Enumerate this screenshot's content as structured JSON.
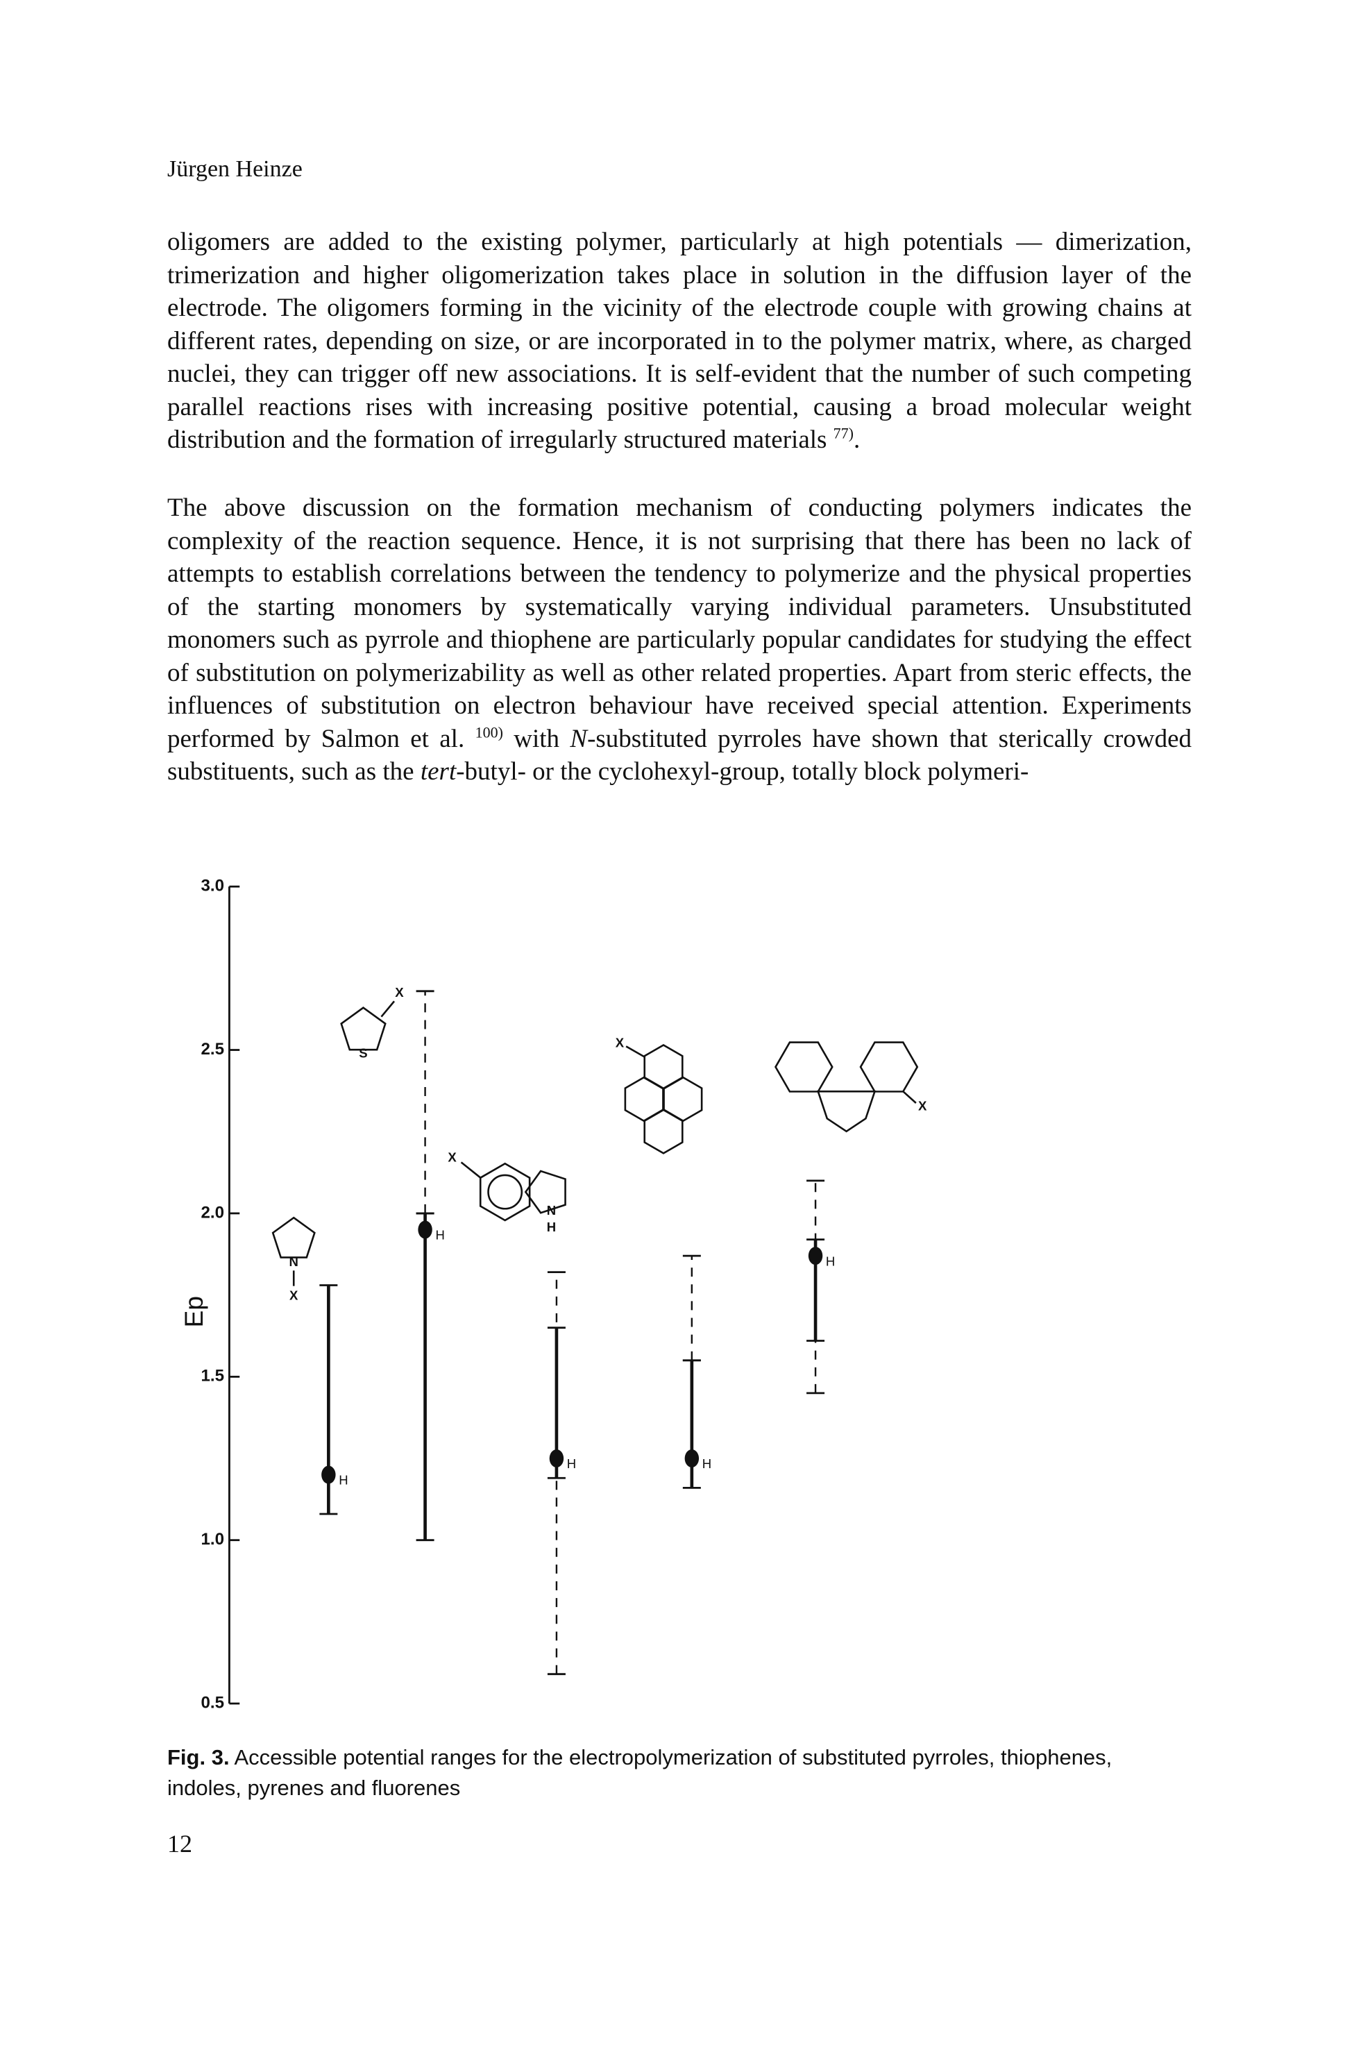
{
  "header": {
    "author": "Jürgen Heinze"
  },
  "paragraphs": [
    [
      {
        "text": "oligomers are added to the existing polymer, particularly at high potentials — dimerization, trimerization and higher oligomerization takes place in solution in the diffusion layer of the electrode. The oligomers forming in the vicinity of the electrode couple with growing chains at different rates, depending on size, or are incorporated in to the polymer matrix, where, as charged nuclei, they can trigger off new associations. It is self-evident that the number of such competing parallel reactions rises with increasing positive potential, causing a broad molecular weight distribution and the formation of irregularly structured materials "
      },
      {
        "text": "77)",
        "style": "sup"
      },
      {
        "text": "."
      }
    ],
    [
      {
        "text": "The above discussion on the formation mechanism of conducting polymers indicates the complexity of the reaction sequence. Hence, it is not surprising that there has been no lack of attempts to establish correlations between the tendency to polymerize and the physical properties of the starting monomers by systematically varying individual parameters. Unsubstituted monomers such as pyrrole and thiophene are particularly popular candidates for studying the effect of substitution on polymerizability as well as other related properties. Apart from steric effects, the influences of substitution on electron behaviour have received special attention. Experiments performed by Salmon et al. "
      },
      {
        "text": "100)",
        "style": "sup"
      },
      {
        "text": " with "
      },
      {
        "text": "N",
        "style": "italic"
      },
      {
        "text": "-substituted pyrroles have shown that sterically crowded substituents, such as the "
      },
      {
        "text": "tert",
        "style": "italic"
      },
      {
        "text": "-butyl- or the cyclohexyl-group, totally block polymeri-"
      }
    ]
  ],
  "chart_data": {
    "type": "range",
    "ylabel": "Ep",
    "ylim": [
      0.5,
      3.0
    ],
    "yticks": [
      {
        "value": 0.5,
        "label": "0.5"
      },
      {
        "value": 1.0,
        "label": "1.0"
      },
      {
        "value": 1.5,
        "label": "1.5"
      },
      {
        "value": 2.0,
        "label": "2.0"
      },
      {
        "value": 2.5,
        "label": "2.5"
      },
      {
        "value": 3.0,
        "label": "3.0"
      }
    ],
    "series": [
      {
        "solid": [
          1.08,
          1.78
        ],
        "dot": 1.2,
        "dot_label": "H",
        "structure_labels": [
          "N",
          "X"
        ]
      },
      {
        "solid": [
          1.0,
          2.0
        ],
        "dashed": [
          2.0,
          2.68
        ],
        "dot": 1.95,
        "dot_label": "H",
        "structure_labels": [
          "X",
          "S"
        ]
      },
      {
        "solid": [
          1.19,
          1.65
        ],
        "dashed": [
          0.59,
          1.82
        ],
        "dot": 1.25,
        "dot_label": "H",
        "structure_labels": [
          "X",
          "N",
          "H"
        ]
      },
      {
        "solid": [
          1.16,
          1.55
        ],
        "dashed": [
          1.55,
          1.87
        ],
        "dot": 1.25,
        "dot_label": "H",
        "structure_labels": [
          "X"
        ]
      },
      {
        "solid": [
          1.61,
          1.92
        ],
        "dashed": [
          1.45,
          2.1
        ],
        "dot": 1.87,
        "dot_label": "H",
        "structure_labels": [
          "X"
        ]
      }
    ]
  },
  "caption": {
    "label": "Fig. 3.",
    "text": " Accessible potential ranges for the electropolymerization of substituted pyrroles, thiophenes, indoles, pyrenes and fluorenes"
  },
  "footer": {
    "page": "12"
  }
}
